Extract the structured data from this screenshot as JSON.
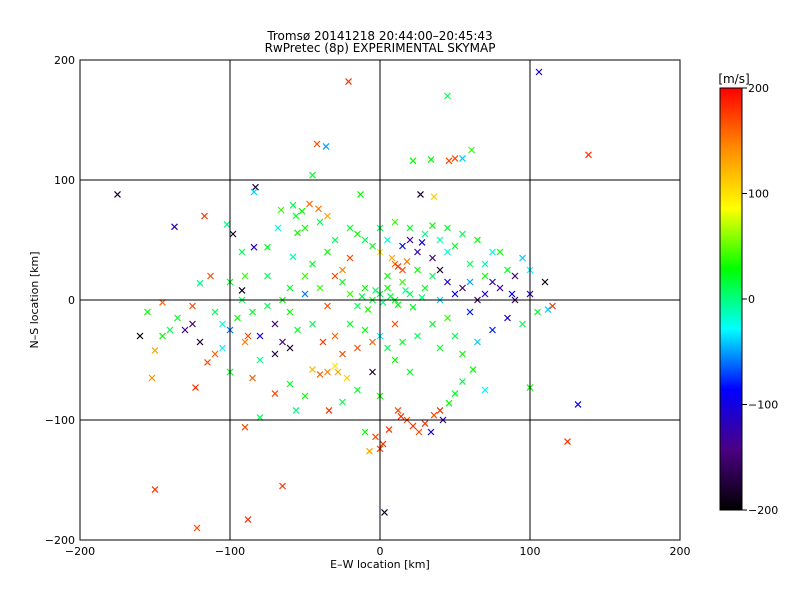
{
  "chart_data": {
    "type": "scatter",
    "title": "Tromsø 20141218 20:44:00–20:45:43",
    "subtitle": "RwPretec (8p) EXPERIMENTAL SKYMAP",
    "xlabel": "E–W location [km]",
    "ylabel": "N–S location [km]",
    "xlim": [
      -200,
      200
    ],
    "ylim": [
      -200,
      200
    ],
    "x_ticks": [
      -200,
      -100,
      0,
      100,
      200
    ],
    "y_ticks": [
      -200,
      -100,
      0,
      100,
      200
    ],
    "x_tick_labels": [
      "−200",
      "−100",
      "0",
      "100",
      "200"
    ],
    "y_tick_labels": [
      "−200",
      "−100",
      "0",
      "100",
      "200"
    ],
    "grid": true,
    "marker": "x",
    "colorbar": {
      "label": "[m/s]",
      "range": [
        -200,
        200
      ],
      "ticks": [
        200,
        100,
        0,
        -100,
        -200
      ],
      "tick_labels": [
        "200",
        "100",
        "0",
        "−100",
        "−200"
      ],
      "colors": [
        "#000000",
        "#4b0082",
        "#0000ff",
        "#00ffff",
        "#00ff00",
        "#ffff00",
        "#ff8c00",
        "#ff0000"
      ]
    },
    "points": [
      {
        "x": -175,
        "y": 88,
        "v": -180
      },
      {
        "x": -21,
        "y": 182,
        "v": 180
      },
      {
        "x": 106,
        "y": 190,
        "v": -110
      },
      {
        "x": 45,
        "y": 170,
        "v": 10
      },
      {
        "x": 139,
        "y": 121,
        "v": 180
      },
      {
        "x": -42,
        "y": 130,
        "v": 170
      },
      {
        "x": -36,
        "y": 128,
        "v": -50
      },
      {
        "x": 22,
        "y": 116,
        "v": 30
      },
      {
        "x": 34,
        "y": 117,
        "v": 30
      },
      {
        "x": 46,
        "y": 116,
        "v": 170
      },
      {
        "x": 50,
        "y": 118,
        "v": 170
      },
      {
        "x": 55,
        "y": 118,
        "v": -40
      },
      {
        "x": 61,
        "y": 125,
        "v": 40
      },
      {
        "x": -45,
        "y": 104,
        "v": 20
      },
      {
        "x": -83,
        "y": 94,
        "v": -180
      },
      {
        "x": -84,
        "y": 90,
        "v": -40
      },
      {
        "x": -13,
        "y": 88,
        "v": 30
      },
      {
        "x": 27,
        "y": 88,
        "v": -180
      },
      {
        "x": 36,
        "y": 86,
        "v": 110
      },
      {
        "x": -47,
        "y": 80,
        "v": 160
      },
      {
        "x": -52,
        "y": 74,
        "v": 30
      },
      {
        "x": -56,
        "y": 70,
        "v": 20
      },
      {
        "x": -66,
        "y": 75,
        "v": 40
      },
      {
        "x": -58,
        "y": 79,
        "v": 10
      },
      {
        "x": -41,
        "y": 76,
        "v": 150
      },
      {
        "x": -117,
        "y": 70,
        "v": 180
      },
      {
        "x": -137,
        "y": 61,
        "v": -120
      },
      {
        "x": -98,
        "y": 55,
        "v": -180
      },
      {
        "x": -102,
        "y": 63,
        "v": 0
      },
      {
        "x": -84,
        "y": 44,
        "v": -110
      },
      {
        "x": -92,
        "y": 40,
        "v": 10
      },
      {
        "x": -75,
        "y": 44,
        "v": 20
      },
      {
        "x": -58,
        "y": 36,
        "v": -10
      },
      {
        "x": -68,
        "y": 60,
        "v": -20
      },
      {
        "x": -55,
        "y": 56,
        "v": 30
      },
      {
        "x": -120,
        "y": 14,
        "v": 0
      },
      {
        "x": -113,
        "y": 20,
        "v": 170
      },
      {
        "x": -125,
        "y": -5,
        "v": 170
      },
      {
        "x": -145,
        "y": -2,
        "v": 160
      },
      {
        "x": -135,
        "y": -15,
        "v": 20
      },
      {
        "x": -130,
        "y": -25,
        "v": -140
      },
      {
        "x": -145,
        "y": -30,
        "v": 30
      },
      {
        "x": -150,
        "y": -42,
        "v": 130
      },
      {
        "x": -152,
        "y": -65,
        "v": 140
      },
      {
        "x": -123,
        "y": -73,
        "v": 180
      },
      {
        "x": -115,
        "y": -52,
        "v": 170
      },
      {
        "x": -120,
        "y": -35,
        "v": -180
      },
      {
        "x": -105,
        "y": -40,
        "v": -30
      },
      {
        "x": -92,
        "y": 8,
        "v": -190
      },
      {
        "x": -92,
        "y": 0,
        "v": 10
      },
      {
        "x": -88,
        "y": -30,
        "v": 170
      },
      {
        "x": -80,
        "y": -50,
        "v": 0
      },
      {
        "x": -70,
        "y": -20,
        "v": -150
      },
      {
        "x": -60,
        "y": -10,
        "v": 30
      },
      {
        "x": -50,
        "y": 5,
        "v": -60
      },
      {
        "x": -40,
        "y": 10,
        "v": 40
      },
      {
        "x": -35,
        "y": -5,
        "v": 170
      },
      {
        "x": -30,
        "y": -30,
        "v": 160
      },
      {
        "x": -38,
        "y": -35,
        "v": 180
      },
      {
        "x": -25,
        "y": -45,
        "v": 170
      },
      {
        "x": -28,
        "y": -60,
        "v": 130
      },
      {
        "x": -22,
        "y": -65,
        "v": 110
      },
      {
        "x": -35,
        "y": -60,
        "v": 150
      },
      {
        "x": -40,
        "y": -62,
        "v": 160
      },
      {
        "x": -30,
        "y": -55,
        "v": 100
      },
      {
        "x": -45,
        "y": -58,
        "v": 120
      },
      {
        "x": -70,
        "y": -78,
        "v": 170
      },
      {
        "x": -85,
        "y": -65,
        "v": 160
      },
      {
        "x": -90,
        "y": -106,
        "v": 170
      },
      {
        "x": -80,
        "y": -98,
        "v": 10
      },
      {
        "x": -56,
        "y": -92,
        "v": 0
      },
      {
        "x": -34,
        "y": -92,
        "v": 180
      },
      {
        "x": -150,
        "y": -158,
        "v": 180
      },
      {
        "x": -122,
        "y": -190,
        "v": 170
      },
      {
        "x": -88,
        "y": -183,
        "v": 180
      },
      {
        "x": -65,
        "y": -155,
        "v": 180
      },
      {
        "x": 3,
        "y": -177,
        "v": -180
      },
      {
        "x": -10,
        "y": -110,
        "v": 30
      },
      {
        "x": -7,
        "y": -126,
        "v": 130
      },
      {
        "x": 0,
        "y": -124,
        "v": 170
      },
      {
        "x": 2,
        "y": -120,
        "v": 180
      },
      {
        "x": -3,
        "y": -114,
        "v": 170
      },
      {
        "x": 6,
        "y": -108,
        "v": 180
      },
      {
        "x": 14,
        "y": -97,
        "v": 180
      },
      {
        "x": 12,
        "y": -92,
        "v": 170
      },
      {
        "x": 18,
        "y": -100,
        "v": 170
      },
      {
        "x": 22,
        "y": -105,
        "v": 180
      },
      {
        "x": 26,
        "y": -110,
        "v": 170
      },
      {
        "x": 30,
        "y": -103,
        "v": 180
      },
      {
        "x": 36,
        "y": -96,
        "v": 170
      },
      {
        "x": 40,
        "y": -92,
        "v": 180
      },
      {
        "x": 34,
        "y": -110,
        "v": -110
      },
      {
        "x": 42,
        "y": -100,
        "v": -120
      },
      {
        "x": 46,
        "y": -86,
        "v": 30
      },
      {
        "x": 50,
        "y": -78,
        "v": 20
      },
      {
        "x": 55,
        "y": -68,
        "v": 10
      },
      {
        "x": 62,
        "y": -58,
        "v": 30
      },
      {
        "x": 70,
        "y": -75,
        "v": -30
      },
      {
        "x": 100,
        "y": -73,
        "v": 30
      },
      {
        "x": 132,
        "y": -87,
        "v": -90
      },
      {
        "x": 125,
        "y": -118,
        "v": 180
      },
      {
        "x": 20,
        "y": -60,
        "v": 20
      },
      {
        "x": 10,
        "y": -50,
        "v": 30
      },
      {
        "x": 25,
        "y": -30,
        "v": 10
      },
      {
        "x": 35,
        "y": -20,
        "v": 20
      },
      {
        "x": 45,
        "y": -15,
        "v": 40
      },
      {
        "x": 50,
        "y": -30,
        "v": 10
      },
      {
        "x": 60,
        "y": -10,
        "v": -80
      },
      {
        "x": 70,
        "y": 5,
        "v": -110
      },
      {
        "x": 80,
        "y": 10,
        "v": -130
      },
      {
        "x": 90,
        "y": 0,
        "v": -160
      },
      {
        "x": 100,
        "y": 5,
        "v": -120
      },
      {
        "x": 110,
        "y": 15,
        "v": -190
      },
      {
        "x": 112,
        "y": -8,
        "v": -40
      },
      {
        "x": 115,
        "y": -5,
        "v": 180
      },
      {
        "x": 85,
        "y": 25,
        "v": 20
      },
      {
        "x": 95,
        "y": 35,
        "v": -40
      },
      {
        "x": 75,
        "y": 40,
        "v": -20
      },
      {
        "x": 70,
        "y": 20,
        "v": 30
      },
      {
        "x": 60,
        "y": 30,
        "v": 10
      },
      {
        "x": 55,
        "y": 10,
        "v": -150
      },
      {
        "x": 50,
        "y": 5,
        "v": -90
      },
      {
        "x": 45,
        "y": 15,
        "v": -110
      },
      {
        "x": 40,
        "y": 0,
        "v": -40
      },
      {
        "x": 35,
        "y": 20,
        "v": 10
      },
      {
        "x": 30,
        "y": 10,
        "v": 20
      },
      {
        "x": 25,
        "y": 25,
        "v": 30
      },
      {
        "x": 20,
        "y": 5,
        "v": 10
      },
      {
        "x": 15,
        "y": 15,
        "v": 40
      },
      {
        "x": 10,
        "y": 0,
        "v": 20
      },
      {
        "x": 5,
        "y": 10,
        "v": 30
      },
      {
        "x": 0,
        "y": 5,
        "v": 10
      },
      {
        "x": -5,
        "y": 0,
        "v": 20
      },
      {
        "x": -10,
        "y": 10,
        "v": 30
      },
      {
        "x": -15,
        "y": -5,
        "v": 10
      },
      {
        "x": -20,
        "y": 5,
        "v": 40
      },
      {
        "x": -25,
        "y": 15,
        "v": 20
      },
      {
        "x": 2,
        "y": -2,
        "v": 0
      },
      {
        "x": 7,
        "y": 3,
        "v": 15
      },
      {
        "x": -3,
        "y": 8,
        "v": 5
      },
      {
        "x": 12,
        "y": -4,
        "v": 25
      },
      {
        "x": 17,
        "y": 8,
        "v": -5
      },
      {
        "x": -8,
        "y": -8,
        "v": 35
      },
      {
        "x": 22,
        "y": -6,
        "v": 20
      },
      {
        "x": -12,
        "y": 3,
        "v": 10
      },
      {
        "x": 28,
        "y": 2,
        "v": 0
      },
      {
        "x": 5,
        "y": 20,
        "v": 30
      },
      {
        "x": 15,
        "y": 25,
        "v": 170
      },
      {
        "x": 10,
        "y": 30,
        "v": 160
      },
      {
        "x": 12,
        "y": 28,
        "v": 180
      },
      {
        "x": 18,
        "y": 32,
        "v": 150
      },
      {
        "x": 8,
        "y": 35,
        "v": 130
      },
      {
        "x": 0,
        "y": 40,
        "v": 100
      },
      {
        "x": -5,
        "y": 45,
        "v": 20
      },
      {
        "x": 5,
        "y": 50,
        "v": -20
      },
      {
        "x": 15,
        "y": 45,
        "v": -90
      },
      {
        "x": 20,
        "y": 50,
        "v": -130
      },
      {
        "x": -10,
        "y": 50,
        "v": 10
      },
      {
        "x": -20,
        "y": 60,
        "v": 20
      },
      {
        "x": -15,
        "y": 55,
        "v": 30
      },
      {
        "x": 0,
        "y": 60,
        "v": 10
      },
      {
        "x": 10,
        "y": 65,
        "v": 40
      },
      {
        "x": 20,
        "y": 60,
        "v": 20
      },
      {
        "x": 30,
        "y": 55,
        "v": 0
      },
      {
        "x": 35,
        "y": 62,
        "v": 30
      },
      {
        "x": 40,
        "y": 50,
        "v": -10
      },
      {
        "x": 45,
        "y": 40,
        "v": -20
      },
      {
        "x": 50,
        "y": 45,
        "v": 20
      },
      {
        "x": -30,
        "y": 50,
        "v": 10
      },
      {
        "x": -35,
        "y": 40,
        "v": 30
      },
      {
        "x": -45,
        "y": 30,
        "v": 20
      },
      {
        "x": -50,
        "y": 20,
        "v": 40
      },
      {
        "x": -60,
        "y": 10,
        "v": 20
      },
      {
        "x": -65,
        "y": 0,
        "v": 30
      },
      {
        "x": -75,
        "y": -5,
        "v": 10
      },
      {
        "x": -85,
        "y": -10,
        "v": 20
      },
      {
        "x": -95,
        "y": -15,
        "v": 30
      },
      {
        "x": -105,
        "y": -20,
        "v": -20
      },
      {
        "x": -110,
        "y": -10,
        "v": 10
      },
      {
        "x": -100,
        "y": -25,
        "v": -60
      },
      {
        "x": -80,
        "y": -30,
        "v": -100
      },
      {
        "x": -65,
        "y": -35,
        "v": -150
      },
      {
        "x": -55,
        "y": -25,
        "v": 20
      },
      {
        "x": -45,
        "y": -20,
        "v": 10
      },
      {
        "x": -20,
        "y": -20,
        "v": 20
      },
      {
        "x": -10,
        "y": -25,
        "v": 30
      },
      {
        "x": 0,
        "y": -30,
        "v": -30
      },
      {
        "x": 5,
        "y": -40,
        "v": 10
      },
      {
        "x": -5,
        "y": -60,
        "v": -180
      },
      {
        "x": 0,
        "y": -80,
        "v": 30
      },
      {
        "x": -15,
        "y": -75,
        "v": 20
      },
      {
        "x": 40,
        "y": -40,
        "v": 20
      },
      {
        "x": 55,
        "y": -45,
        "v": 30
      },
      {
        "x": 65,
        "y": -35,
        "v": -40
      },
      {
        "x": 75,
        "y": -25,
        "v": -80
      },
      {
        "x": 85,
        "y": -15,
        "v": -110
      },
      {
        "x": 95,
        "y": -20,
        "v": 10
      },
      {
        "x": 105,
        "y": -10,
        "v": 20
      },
      {
        "x": 65,
        "y": 0,
        "v": -160
      },
      {
        "x": 75,
        "y": 15,
        "v": -120
      },
      {
        "x": 88,
        "y": 5,
        "v": -90
      },
      {
        "x": 60,
        "y": 15,
        "v": -50
      },
      {
        "x": 70,
        "y": 30,
        "v": -10
      },
      {
        "x": 80,
        "y": 40,
        "v": 30
      },
      {
        "x": 90,
        "y": 20,
        "v": -150
      },
      {
        "x": 100,
        "y": 25,
        "v": -30
      },
      {
        "x": -60,
        "y": -40,
        "v": -180
      },
      {
        "x": -70,
        "y": -45,
        "v": -170
      },
      {
        "x": -90,
        "y": -35,
        "v": 150
      },
      {
        "x": -110,
        "y": -45,
        "v": 160
      },
      {
        "x": -125,
        "y": -20,
        "v": -150
      },
      {
        "x": -140,
        "y": -25,
        "v": 10
      },
      {
        "x": -155,
        "y": -10,
        "v": 30
      },
      {
        "x": -160,
        "y": -30,
        "v": -200
      },
      {
        "x": -100,
        "y": -60,
        "v": 20
      },
      {
        "x": -60,
        "y": -70,
        "v": 20
      },
      {
        "x": -50,
        "y": -80,
        "v": 30
      },
      {
        "x": -25,
        "y": -85,
        "v": 10
      },
      {
        "x": -15,
        "y": -40,
        "v": 170
      },
      {
        "x": -5,
        "y": -35,
        "v": 160
      },
      {
        "x": 10,
        "y": -20,
        "v": 170
      },
      {
        "x": 15,
        "y": -35,
        "v": 20
      },
      {
        "x": -20,
        "y": 35,
        "v": 170
      },
      {
        "x": -25,
        "y": 25,
        "v": 150
      },
      {
        "x": -30,
        "y": 20,
        "v": 170
      },
      {
        "x": 25,
        "y": 40,
        "v": -120
      },
      {
        "x": 35,
        "y": 35,
        "v": -150
      },
      {
        "x": 40,
        "y": 25,
        "v": -180
      },
      {
        "x": 28,
        "y": 48,
        "v": -100
      },
      {
        "x": 45,
        "y": 60,
        "v": 20
      },
      {
        "x": 55,
        "y": 55,
        "v": 10
      },
      {
        "x": 65,
        "y": 50,
        "v": 30
      },
      {
        "x": -40,
        "y": 65,
        "v": 10
      },
      {
        "x": -50,
        "y": 60,
        "v": 30
      },
      {
        "x": -35,
        "y": 70,
        "v": 130
      },
      {
        "x": -90,
        "y": 20,
        "v": 40
      },
      {
        "x": -100,
        "y": 15,
        "v": 20
      },
      {
        "x": -75,
        "y": 20,
        "v": 10
      }
    ]
  }
}
